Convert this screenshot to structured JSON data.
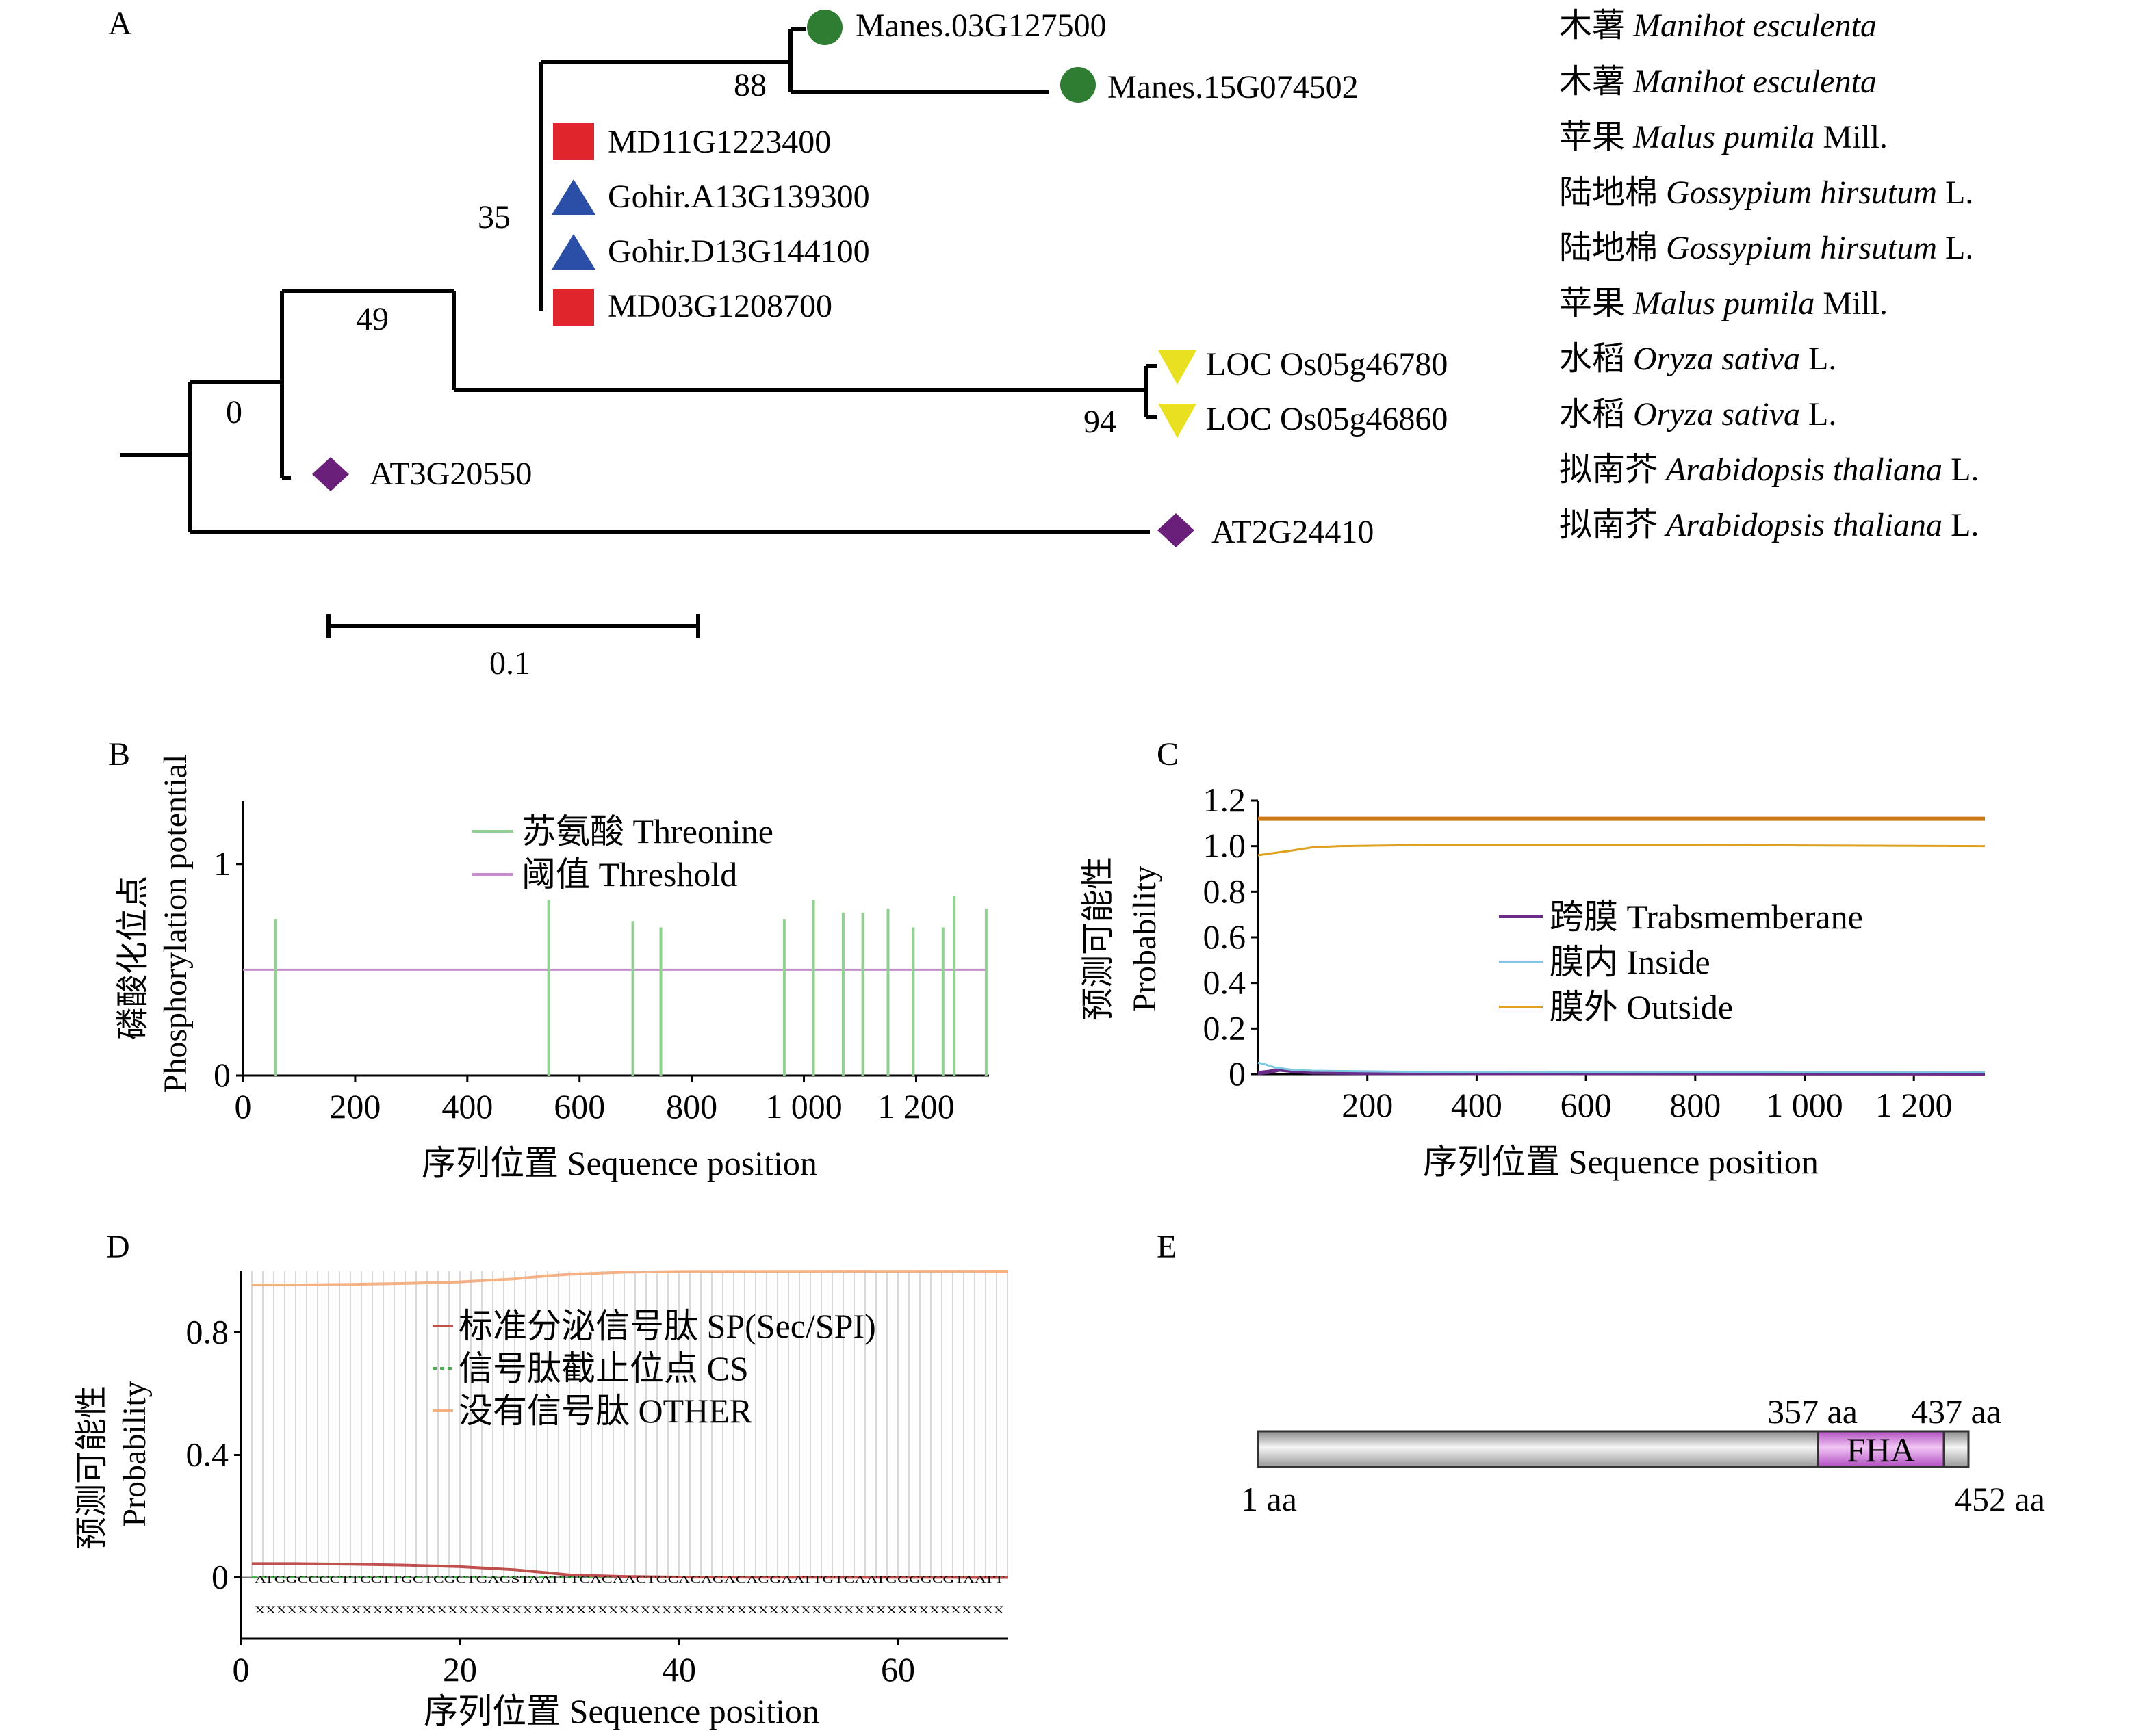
{
  "panels": {
    "A": {
      "label": "A",
      "leaves": [
        {
          "id": "Manes.03G127500",
          "species_cn": "木薯",
          "species_latin": "Manihot esculenta",
          "authority": "",
          "marker": "circle",
          "color": "#2e7d32"
        },
        {
          "id": "Manes.15G074502",
          "species_cn": "木薯",
          "species_latin": "Manihot esculenta",
          "authority": "",
          "marker": "circle",
          "color": "#2e7d32"
        },
        {
          "id": "MD11G1223400",
          "species_cn": "苹果",
          "species_latin": "Malus pumila",
          "authority": "Mill.",
          "marker": "square",
          "color": "#e0262c"
        },
        {
          "id": "Gohir.A13G139300",
          "species_cn": "陆地棉",
          "species_latin": "Gossypium hirsutum",
          "authority": "L.",
          "marker": "triangle-up",
          "color": "#2b4ea6"
        },
        {
          "id": "Gohir.D13G144100",
          "species_cn": "陆地棉",
          "species_latin": "Gossypium hirsutum",
          "authority": "L.",
          "marker": "triangle-up",
          "color": "#2b4ea6"
        },
        {
          "id": "MD03G1208700",
          "species_cn": "苹果",
          "species_latin": "Malus pumila",
          "authority": "Mill.",
          "marker": "square",
          "color": "#e0262c"
        },
        {
          "id": "LOC Os05g46780",
          "species_cn": "水稻",
          "species_latin": "Oryza sativa",
          "authority": "L.",
          "marker": "triangle-down",
          "color": "#e8e020"
        },
        {
          "id": "LOC Os05g46860",
          "species_cn": "水稻",
          "species_latin": "Oryza sativa",
          "authority": "L.",
          "marker": "triangle-down",
          "color": "#e8e020"
        },
        {
          "id": "AT3G20550",
          "species_cn": "拟南芥",
          "species_latin": "Arabidopsis thaliana",
          "authority": "L.",
          "marker": "diamond",
          "color": "#6a1f7a"
        },
        {
          "id": "AT2G24410",
          "species_cn": "拟南芥",
          "species_latin": "Arabidopsis thaliana",
          "authority": "L.",
          "marker": "diamond",
          "color": "#6a1f7a"
        }
      ],
      "bootstrap": [
        "88",
        "35",
        "49",
        "0",
        "94"
      ],
      "scale_bar_label": "0.1"
    },
    "B": {
      "label": "B",
      "ylabel_cn": "磷酸化位点",
      "ylabel_en": "Phosphorylation potential",
      "xlabel": "序列位置 Sequence position",
      "legend": [
        {
          "name": "苏氨酸 Threonine",
          "color": "#8fd18f"
        },
        {
          "name": "阈值 Threshold",
          "color": "#c98ad0"
        }
      ]
    },
    "C": {
      "label": "C",
      "ylabel_cn": "预测可能性",
      "ylabel_en": "Probability",
      "xlabel": "序列位置 Sequence position",
      "legend": [
        {
          "name": "跨膜 Trabsmemberane",
          "color": "#6a2c8a"
        },
        {
          "name": "膜内 Inside",
          "color": "#7ec8e3"
        },
        {
          "name": "膜外 Outside",
          "color": "#e0a020"
        }
      ]
    },
    "D": {
      "label": "D",
      "ylabel_cn": "预测可能性",
      "ylabel_en": "Probability",
      "xlabel": "序列位置 Sequence position",
      "legend": [
        {
          "name": "标准分泌信号肽 SP(Sec/SPI)",
          "color": "#c0504d"
        },
        {
          "name": "信号肽截止位点 CS",
          "color": "#4caf50"
        },
        {
          "name": "没有信号肽 OTHER",
          "color": "#f4b183"
        }
      ],
      "sequence": "ATGGCCCCTTCCTTGCTCGCTGAGSTAATTTCACAACTGCACAGACAGGAATTGTCAATGGGGCGTAATT",
      "sequence_marks": "XXXXXXXXXXXXXXXXXXXXXXXXXXXXXXXXXXXXXXXXXXXXXXXXXXXXXXXXXXXXXXXXXXXXXX"
    },
    "E": {
      "label": "E",
      "domain_name": "FHA",
      "protein_length": 452,
      "domain_start": 357,
      "domain_end": 437,
      "start_label": "1 aa",
      "end_label": "452 aa",
      "domain_start_label": "357 aa",
      "domain_end_label": "437 aa"
    }
  },
  "chart_data": [
    {
      "panel": "B",
      "type": "bar",
      "title": "",
      "xlabel": "序列位置 Sequence position",
      "ylabel": "磷酸化位点 Phosphorylation potential",
      "xlim": [
        0,
        1330
      ],
      "ylim": [
        0,
        1.3
      ],
      "xticks": [
        0,
        200,
        400,
        600,
        800,
        1000,
        1200
      ],
      "xtick_labels": [
        "0",
        "200",
        "400",
        "600",
        "800",
        "1 000",
        "1 200"
      ],
      "yticks": [
        0,
        1
      ],
      "series": [
        {
          "name": "苏氨酸 Threonine",
          "x": [
            58,
            545,
            695,
            745,
            965,
            1017,
            1070,
            1105,
            1150,
            1195,
            1248,
            1268,
            1325
          ],
          "values": [
            0.74,
            0.83,
            0.73,
            0.7,
            0.74,
            0.83,
            0.77,
            0.77,
            0.79,
            0.7,
            0.7,
            0.85,
            0.79
          ]
        },
        {
          "name": "阈值 Threshold",
          "x": [
            0,
            1325
          ],
          "values": [
            0.5,
            0.5
          ]
        }
      ]
    },
    {
      "panel": "C",
      "type": "line",
      "title": "",
      "xlabel": "序列位置 Sequence position",
      "ylabel": "预测可能性 Probability",
      "xlim": [
        0,
        1330
      ],
      "ylim": [
        0,
        1.2
      ],
      "xticks": [
        200,
        400,
        600,
        800,
        1000,
        1200
      ],
      "xtick_labels": [
        "200",
        "400",
        "600",
        "800",
        "1 000",
        "1 200"
      ],
      "yticks": [
        0,
        0.2,
        0.4,
        0.6,
        0.8,
        1.0,
        1.2
      ],
      "ytick_labels": [
        "0",
        "0.2",
        "0.4",
        "0.6",
        "0.8",
        "1.0",
        "1.2"
      ],
      "series": [
        {
          "name": "跨膜 Trabsmemberane",
          "x": [
            0,
            20,
            40,
            60,
            100,
            200,
            1330
          ],
          "values": [
            0.005,
            0.01,
            0.02,
            0.015,
            0.008,
            0.005,
            0.003
          ]
        },
        {
          "name": "膜内 Inside",
          "x": [
            0,
            10,
            30,
            60,
            100,
            300,
            1330
          ],
          "values": [
            0.05,
            0.045,
            0.03,
            0.02,
            0.015,
            0.01,
            0.008
          ]
        },
        {
          "name": "膜外 Outside",
          "x": [
            0,
            30,
            60,
            100,
            150,
            300,
            800,
            1330
          ],
          "values": [
            0.96,
            0.97,
            0.98,
            0.995,
            1.0,
            1.005,
            1.005,
            1.0
          ]
        },
        {
          "name": "",
          "x": [
            0,
            1330
          ],
          "values": [
            1.12,
            1.12
          ]
        }
      ]
    },
    {
      "panel": "D",
      "type": "line",
      "title": "",
      "xlabel": "序列位置 Sequence position",
      "ylabel": "预测可能性 Probability",
      "xlim": [
        0,
        70
      ],
      "ylim": [
        -0.2,
        1.0
      ],
      "xticks": [
        0,
        20,
        40,
        60
      ],
      "yticks": [
        0,
        0.4,
        0.8
      ],
      "series": [
        {
          "name": "标准分泌信号肽 SP(Sec/SPI)",
          "x": [
            1,
            5,
            10,
            15,
            20,
            25,
            28,
            30,
            35,
            40,
            70
          ],
          "values": [
            0.045,
            0.045,
            0.043,
            0.04,
            0.035,
            0.025,
            0.015,
            0.008,
            0.003,
            0.001,
            0.0
          ]
        },
        {
          "name": "信号肽截止位点 CS",
          "x": [
            1,
            70
          ],
          "values": [
            0.0,
            0.0
          ]
        },
        {
          "name": "没有信号肽 OTHER",
          "x": [
            1,
            5,
            10,
            15,
            20,
            25,
            28,
            30,
            35,
            40,
            70
          ],
          "values": [
            0.955,
            0.955,
            0.957,
            0.96,
            0.965,
            0.975,
            0.985,
            0.99,
            0.997,
            0.999,
            1.0
          ]
        }
      ]
    }
  ]
}
